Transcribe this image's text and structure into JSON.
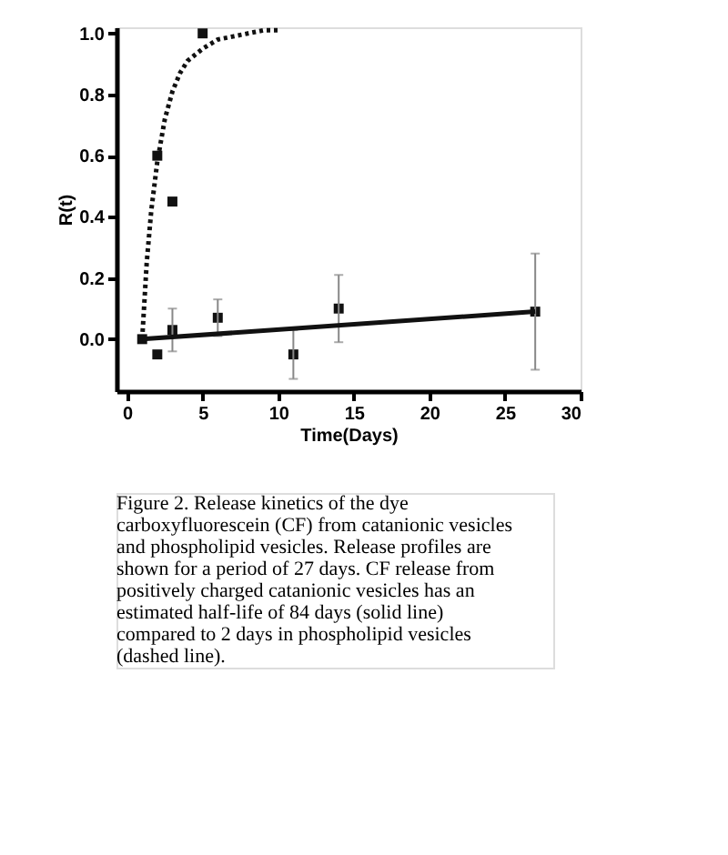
{
  "chart_data": {
    "type": "scatter",
    "xlabel": "Time(Days)",
    "ylabel": "R(t)",
    "xlim": [
      -0.7,
      30
    ],
    "xticks": [
      0,
      5,
      10,
      15,
      20,
      25,
      30
    ],
    "ylim": [
      -0.17,
      1.02
    ],
    "yticks": [
      {
        "value": 0.0,
        "label": "0.0"
      },
      0.2,
      0.4,
      0.6,
      0.8,
      {
        "value": 1.0,
        "label": "1.0"
      }
    ],
    "grid": false,
    "marker": "square",
    "series": [
      {
        "color": "#111111",
        "x": [
          1,
          2,
          3,
          6,
          11,
          14,
          27
        ],
        "values": [
          0.0,
          -0.05,
          0.03,
          0.07,
          -0.05,
          0.1,
          0.09
        ],
        "errors": [
          null,
          null,
          0.07,
          0.06,
          0.08,
          0.11,
          0.19
        ]
      },
      {
        "color": "#111111",
        "x": [
          2,
          3,
          5
        ],
        "values": [
          0.6,
          0.45,
          1.0
        ]
      },
      {
        "type": "line",
        "color": "#111111",
        "line_style": "solid",
        "marker": "none",
        "x": [
          1,
          27
        ],
        "values": [
          0.0,
          0.09
        ]
      },
      {
        "type": "line",
        "color": "#111111",
        "line_style": "dotted",
        "marker": "none",
        "x": [
          1,
          1.3,
          1.6,
          2,
          2.5,
          3,
          3.5,
          4,
          5,
          6,
          7,
          8,
          9,
          10
        ],
        "values": [
          0.0,
          0.25,
          0.42,
          0.58,
          0.72,
          0.81,
          0.87,
          0.91,
          0.95,
          0.98,
          0.99,
          1.0,
          1.01,
          1.01
        ]
      }
    ],
    "annotations": [
      "Figure 2.  Release kinetics of the dye carboxyfluorescein (CF) from catanionic vesicles and phospholipid vesicles. Release profiles are shown for a period of 27 days.  CF release from positively charged catanionic vesicles has an estimated half-life of 84 days (solid line) compared to 2 days in phospholipid vesicles (dashed line)."
    ]
  }
}
